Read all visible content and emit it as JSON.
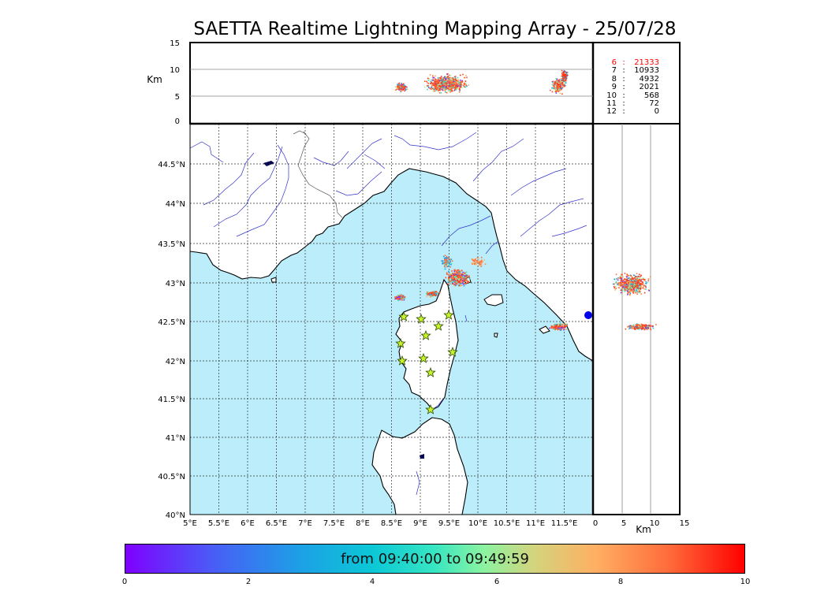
{
  "title": "SAETTA Realtime Lightning Mapping Array - 25/07/28",
  "altitude_panel": {
    "unit_label": "Km",
    "ticks": [
      "0",
      "5",
      "10",
      "15"
    ]
  },
  "side_panel": {
    "unit_label": "Km",
    "ticks": [
      "0",
      "5",
      "10",
      "15"
    ]
  },
  "map": {
    "lon_ticks": [
      "5°E",
      "5.5°E",
      "6°E",
      "6.5°E",
      "7°E",
      "7.5°E",
      "8°E",
      "8.5°E",
      "9°E",
      "9.5°E",
      "10°E",
      "10.5°E",
      "11°E",
      "11.5°E"
    ],
    "lat_ticks": [
      "40°N",
      "40.5°N",
      "41°N",
      "41.5°N",
      "42°N",
      "42.5°N",
      "43°N",
      "43.5°N",
      "44°N",
      "44.5°N"
    ],
    "colors": {
      "sea": "#bbeefa",
      "land": "#ffffff",
      "coast": "#000000",
      "rivers": "#3333cc",
      "borders": "#555555",
      "station": "#c8f22a"
    },
    "station_icon": "star-icon",
    "marker_icon": "blue-dot-icon"
  },
  "legend": [
    {
      "label": "6",
      "value": "21333",
      "color": "#ff0000"
    },
    {
      "label": "7",
      "value": "10933",
      "color": "#000000"
    },
    {
      "label": "8",
      "value": "4932",
      "color": "#000000"
    },
    {
      "label": "9",
      "value": "2021",
      "color": "#000000"
    },
    {
      "label": "10",
      "value": "568",
      "color": "#000000"
    },
    {
      "label": "11",
      "value": "72",
      "color": "#000000"
    },
    {
      "label": "12",
      "value": "0",
      "color": "#000000"
    }
  ],
  "colorbar": {
    "caption": "from 09:40:00 to 09:49:59",
    "ticks": [
      "0",
      "2",
      "4",
      "6",
      "8",
      "10"
    ],
    "colormap": "rainbow"
  }
}
